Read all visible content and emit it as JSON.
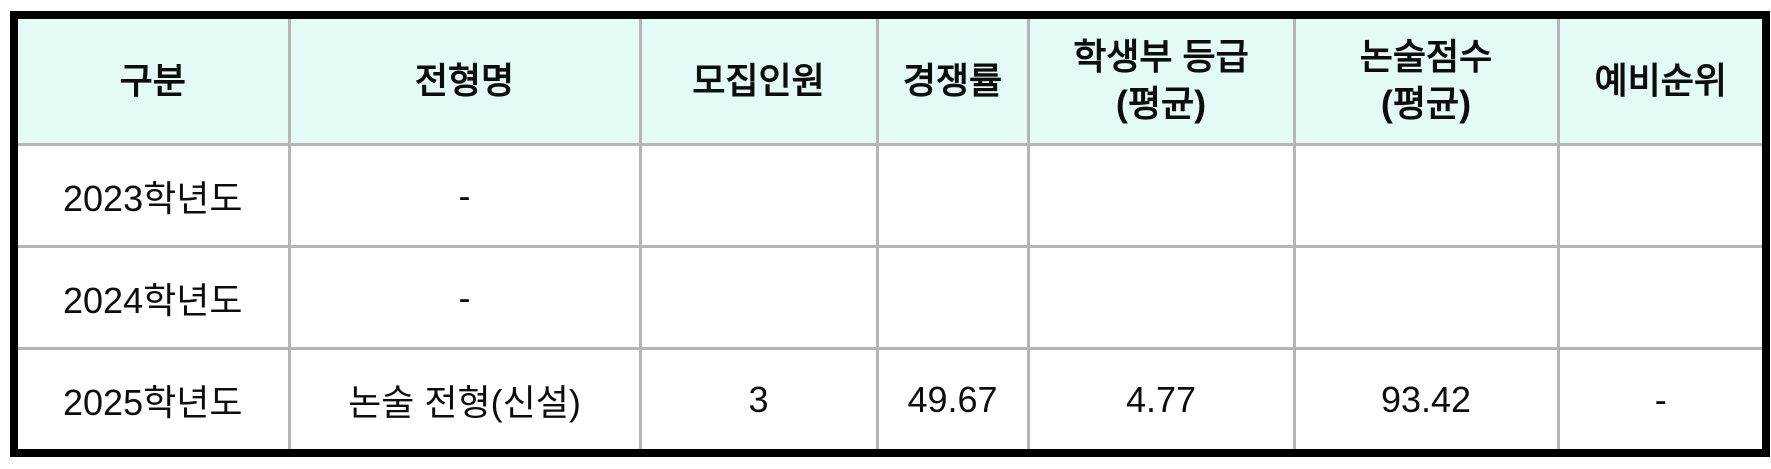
{
  "table": {
    "headers": [
      "구분",
      "전형명",
      "모집인원",
      "경쟁률",
      "학생부 등급\n(평균)",
      "논술점수\n(평균)",
      "예비순위"
    ],
    "rows": [
      {
        "cells": [
          "2023학년도",
          "-",
          "",
          "",
          "",
          "",
          ""
        ]
      },
      {
        "cells": [
          "2024학년도",
          "-",
          "",
          "",
          "",
          "",
          ""
        ]
      },
      {
        "cells": [
          "2025학년도",
          "논술 전형(신설)",
          "3",
          "49.67",
          "4.77",
          "93.42",
          "-"
        ]
      }
    ]
  },
  "colors": {
    "header_background": "#e4faf6",
    "grid_line": "#b5b5b5",
    "outer_border": "#000000",
    "text": "#0d0d0d"
  }
}
